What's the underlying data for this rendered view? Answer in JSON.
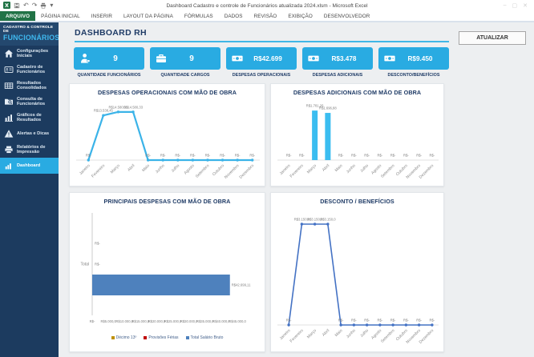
{
  "window": {
    "title": "Dashboard Cadastro e controle de Funcionários atualizada  2024.xlsm - Microsoft Excel",
    "controls": {
      "minimize": "–",
      "maximize": "▢",
      "close": "✕"
    }
  },
  "ribbon": {
    "tabs": [
      {
        "label": "ARQUIVO",
        "active": true
      },
      {
        "label": "PÁGINA INICIAL"
      },
      {
        "label": "INSERIR"
      },
      {
        "label": "LAYOUT DA PÁGINA"
      },
      {
        "label": "FÓRMULAS"
      },
      {
        "label": "DADOS"
      },
      {
        "label": "REVISÃO"
      },
      {
        "label": "EXIBIÇÃO"
      },
      {
        "label": "DESENVOLVEDOR"
      }
    ]
  },
  "sidebar": {
    "header_line1": "CADASTRO & CONTROLE DE",
    "header_line2": "FUNCIONÁRIOS",
    "items": [
      {
        "label": "Configurações Iniciais",
        "icon": "home"
      },
      {
        "label": "Cadastro de Funcionários",
        "icon": "id-card"
      },
      {
        "label": "Resultados Consolidados",
        "icon": "table"
      },
      {
        "label": "Consulta de Funcionários",
        "icon": "folder-search"
      },
      {
        "label": "Gráficos de Resultados",
        "icon": "bar-chart"
      },
      {
        "label": "Alertas e Dicas",
        "icon": "alert"
      },
      {
        "label": "Relatórios de Impressão",
        "icon": "printer"
      },
      {
        "label": "Dashboard",
        "icon": "dashboard",
        "active": true
      }
    ]
  },
  "header": {
    "title": "DASHBOARD RH",
    "update_button": "ATUALIZAR"
  },
  "kpis": [
    {
      "icon": "employee-icon",
      "value": "9",
      "label": "QUANTIDADE FUNCIONÁRIOS"
    },
    {
      "icon": "briefcase-icon",
      "value": "9",
      "label": "QUANTIDADE CARGOS"
    },
    {
      "icon": "cash-icon",
      "value": "R$42.699",
      "label": "DESPESAS OPERACIONAIS"
    },
    {
      "icon": "cash-icon",
      "value": "R$3.478",
      "label": "DESPESAS ADICIONAIS"
    },
    {
      "icon": "cash-icon",
      "value": "R$9.450",
      "label": "DESCONTO/BENEFÍCIOS"
    }
  ],
  "chart_data": [
    {
      "type": "line",
      "title": "DESPESAS OPERACIONAIS COM MÃO DE OBRA",
      "categories": [
        "Janeiro",
        "Fevereiro",
        "Março",
        "Abril",
        "Maio",
        "Junho",
        "Julho",
        "Agosto",
        "Setembro",
        "Outubro",
        "Novembro",
        "Dezembro"
      ],
      "values": [
        0,
        13538.45,
        14580.33,
        14580.33,
        0,
        0,
        0,
        0,
        0,
        0,
        0,
        0
      ],
      "point_labels": [
        "R$-",
        "R$13.538,45",
        "R$14.580,33",
        "R$14.580,33",
        "R$-",
        "R$-",
        "R$-",
        "R$-",
        "R$-",
        "R$-",
        "R$-",
        "R$-"
      ],
      "ymax": 16000,
      "color": "#3bb3e8",
      "stroke": 2.2,
      "xlabel": "",
      "ylabel": "",
      "grid": false,
      "legend": "none"
    },
    {
      "type": "bar",
      "title": "DESPESAS ADICIONAIS COM MÃO DE OBRA",
      "categories": [
        "Janeiro",
        "Fevereiro",
        "Março",
        "Abril",
        "Maio",
        "Junho",
        "Julho",
        "Agosto",
        "Setembro",
        "Outubro",
        "Novembro",
        "Dezembro"
      ],
      "values": [
        0,
        0,
        1781.26,
        1696.88,
        0,
        0,
        0,
        0,
        0,
        0,
        0,
        0
      ],
      "point_labels": [
        "R$-",
        "R$-",
        "R$1.781,26",
        "R$1.696,88",
        "R$-",
        "R$-",
        "R$-",
        "R$-",
        "R$-",
        "R$-",
        "R$-",
        "R$-"
      ],
      "ymax": 1900,
      "color": "#3bbdf0",
      "xlabel": "",
      "ylabel": "",
      "grid": false,
      "legend": "none"
    },
    {
      "type": "hbar",
      "title": "PRINCIPAIS DESPESAS COM MÃO DE OBRA",
      "categories": [
        "Total"
      ],
      "series": [
        {
          "name": "Décimo 13º",
          "color": "#bf9000",
          "value": 0,
          "label": "R$-"
        },
        {
          "name": "Provisões Férias",
          "color": "#c00000",
          "value": 0,
          "label": "R$-"
        },
        {
          "name": "Total Salário Bruto",
          "color": "#4e81bd",
          "value": 42699.11,
          "label": "R$42.699,11"
        }
      ],
      "xmax": 45000,
      "ticks": [
        "R$-",
        "R$5.000,0",
        "R$10.000,0",
        "R$15.000,0",
        "R$20.000,0",
        "R$25.000,0",
        "R$30.000,0",
        "R$35.000,0",
        "R$40.000,0",
        "R$45.000,0"
      ],
      "grid": false,
      "legend": "bottom"
    },
    {
      "type": "line",
      "title": "DESCONTO / BENEFÍCIOS",
      "categories": [
        "Janeiro",
        "Fevereiro",
        "Março",
        "Abril",
        "Maio",
        "Junho",
        "Julho",
        "Agosto",
        "Setembro",
        "Outubro",
        "Novembro",
        "Dezembro"
      ],
      "values": [
        0,
        3150,
        3150,
        3150,
        0,
        0,
        0,
        0,
        0,
        0,
        0,
        0
      ],
      "point_labels": [
        "R$-",
        "R$3.150,0",
        "R$3.150,0",
        "R$3.150,0",
        "R$-",
        "R$-",
        "R$-",
        "R$-",
        "R$-",
        "R$-",
        "R$-",
        "R$-"
      ],
      "ymax": 3400,
      "color": "#4472c4",
      "stroke": 1.6,
      "xlabel": "",
      "ylabel": "",
      "grid": false,
      "legend": "none"
    }
  ],
  "colors": {
    "accent": "#29abe2",
    "sidebar": "#1c3b5f",
    "navy_text": "#1f3b66",
    "excel_green": "#217346"
  }
}
